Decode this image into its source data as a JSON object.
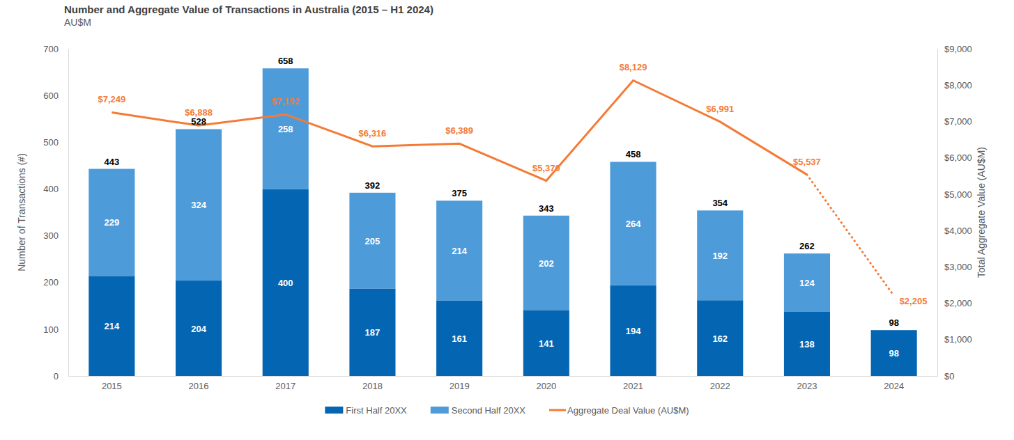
{
  "chart_data": {
    "type": "bar",
    "title": "Number and Aggregate Value of Transactions in Australia (2015 – H1 2024)",
    "subtitle": "AU$M",
    "ylabel": "Number of Transactions (#)",
    "y2label": "Total Aggregate Value (AU$M)",
    "categories": [
      "2015",
      "2016",
      "2017",
      "2018",
      "2019",
      "2020",
      "2021",
      "2022",
      "2023",
      "2024"
    ],
    "stacked": true,
    "data_labels": true,
    "grid": false,
    "legend": "bottom",
    "series": [
      {
        "name": "First Half 20XX",
        "type": "bar",
        "color": "#0465b2",
        "values": [
          214,
          204,
          400,
          187,
          161,
          141,
          194,
          162,
          138,
          98
        ]
      },
      {
        "name": "Second Half 20XX",
        "type": "bar",
        "color": "#4e9bda",
        "values": [
          229,
          324,
          258,
          205,
          214,
          202,
          264,
          192,
          124,
          null
        ]
      },
      {
        "name": "Aggregate Deal Value (AU$M)",
        "type": "line",
        "axis": "y2",
        "color": "#f47b36",
        "line_style": "solid",
        "values": [
          7249,
          6888,
          7192,
          6316,
          6389,
          5370,
          8129,
          6991,
          5537,
          null
        ],
        "value_labels": [
          "$7,249",
          "$6,888",
          "$7,192",
          "$6,316",
          "$6,389",
          "$5,370",
          "$8,129",
          "$6,991",
          "$5,537",
          null
        ]
      },
      {
        "type": "line",
        "axis": "y2",
        "color": "#f47b36",
        "line_style": "dotted",
        "values": [
          null,
          null,
          null,
          null,
          null,
          null,
          null,
          null,
          5537,
          2205
        ],
        "value_labels": [
          null,
          null,
          null,
          null,
          null,
          null,
          null,
          null,
          null,
          "$2,205"
        ]
      }
    ],
    "totals": [
      443,
      528,
      658,
      392,
      375,
      343,
      458,
      354,
      262,
      98
    ],
    "ylim": [
      0,
      700
    ],
    "yticks": [
      0,
      100,
      200,
      300,
      400,
      500,
      600,
      700
    ],
    "y2lim": [
      0,
      9000
    ],
    "y2ticks": [
      {
        "value": 0,
        "label": "$0"
      },
      {
        "value": 1000,
        "label": "$1,000"
      },
      {
        "value": 2000,
        "label": "$2,000"
      },
      {
        "value": 3000,
        "label": "$3,000"
      },
      {
        "value": 4000,
        "label": "$4,000"
      },
      {
        "value": 5000,
        "label": "$5,000"
      },
      {
        "value": 6000,
        "label": "$6,000"
      },
      {
        "value": 7000,
        "label": "$7,000"
      },
      {
        "value": 8000,
        "label": "$8,000"
      },
      {
        "value": 9000,
        "label": "$9,000"
      }
    ]
  }
}
